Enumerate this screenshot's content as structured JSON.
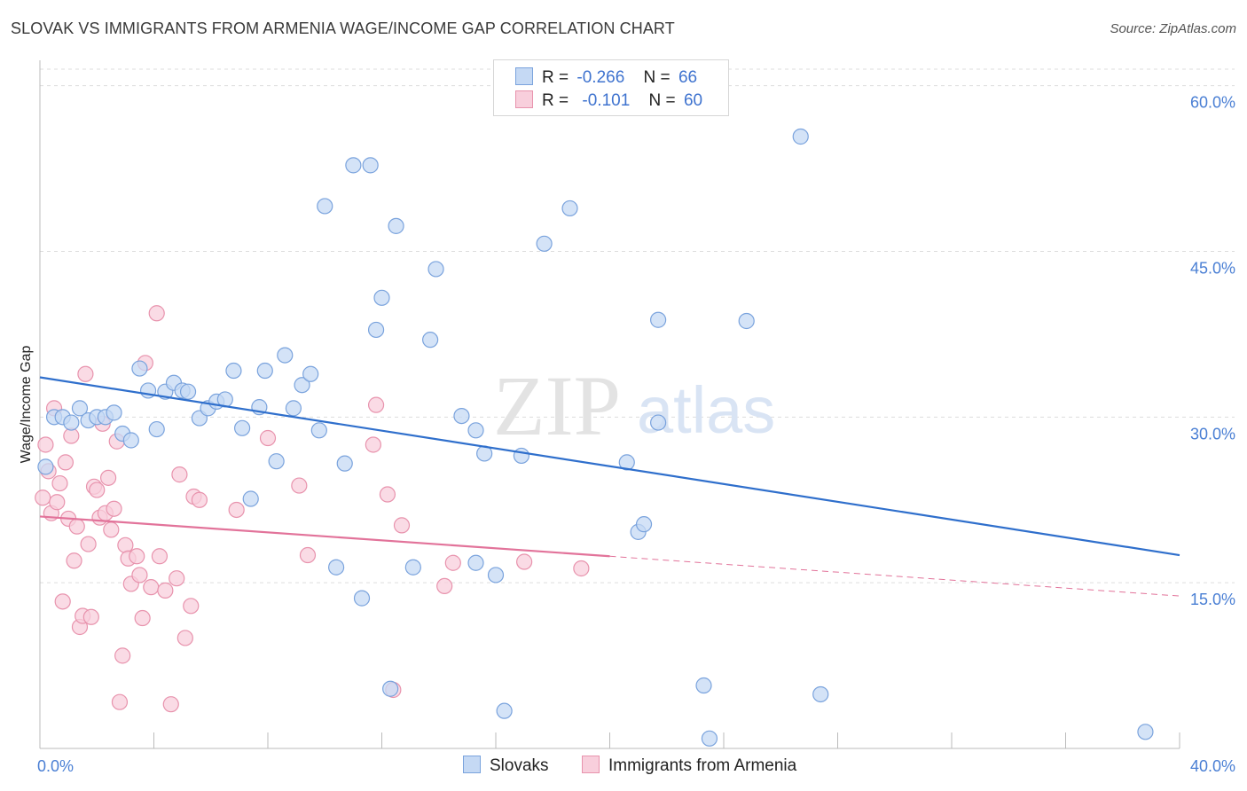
{
  "header": {
    "title": "SLOVAK VS IMMIGRANTS FROM ARMENIA WAGE/INCOME GAP CORRELATION CHART",
    "source": "Source: ZipAtlas.com"
  },
  "watermark": {
    "zip": "ZIP",
    "atlas": "atlas"
  },
  "legend": {
    "rows": [
      {
        "r_label": "R =",
        "r_value": "-0.266",
        "n_label": "N =",
        "n_value": "66"
      },
      {
        "r_label": "R =",
        "r_value": "-0.101",
        "n_label": "N =",
        "n_value": "60"
      }
    ]
  },
  "colors": {
    "slovak_fill": "#c5d9f4",
    "slovak_stroke": "#7aa3dd",
    "slovak_line": "#2f6fcc",
    "armenia_fill": "#f8cfdc",
    "armenia_stroke": "#e893ad",
    "armenia_line": "#e2739a",
    "tick_label": "#4a7fd4",
    "grid": "#dddddd"
  },
  "chart_data": {
    "type": "scatter",
    "ylabel": "Wage/Income Gap",
    "x_tick_labels": [
      "0.0%",
      "40.0%"
    ],
    "y_tick_labels": [
      "60.0%",
      "45.0%",
      "30.0%",
      "15.0%"
    ],
    "y_ticks": [
      60,
      45,
      30,
      15
    ],
    "xlim": [
      0,
      40
    ],
    "ylim": [
      0,
      61.5
    ],
    "grid": true,
    "legend_position": "bottom",
    "series": [
      {
        "name": "Slovaks",
        "r": -0.266,
        "n": 66,
        "trend": {
          "x0": 0,
          "y0": 33.6,
          "x1": 40,
          "y1": 17.5
        },
        "points": [
          [
            0.2,
            25.5
          ],
          [
            0.5,
            30.0
          ],
          [
            0.8,
            30.0
          ],
          [
            1.1,
            29.5
          ],
          [
            1.4,
            30.8
          ],
          [
            1.7,
            29.7
          ],
          [
            2.0,
            30.0
          ],
          [
            2.3,
            30.0
          ],
          [
            2.6,
            30.4
          ],
          [
            2.9,
            28.5
          ],
          [
            3.2,
            27.9
          ],
          [
            3.5,
            34.4
          ],
          [
            3.8,
            32.4
          ],
          [
            4.1,
            28.9
          ],
          [
            4.4,
            32.3
          ],
          [
            4.7,
            33.1
          ],
          [
            5.0,
            32.4
          ],
          [
            5.2,
            32.3
          ],
          [
            5.6,
            29.9
          ],
          [
            5.9,
            30.8
          ],
          [
            6.2,
            31.4
          ],
          [
            6.5,
            31.6
          ],
          [
            6.8,
            34.2
          ],
          [
            7.1,
            29.0
          ],
          [
            7.4,
            22.6
          ],
          [
            7.7,
            30.9
          ],
          [
            7.9,
            34.2
          ],
          [
            8.3,
            26.0
          ],
          [
            8.6,
            35.6
          ],
          [
            8.9,
            30.8
          ],
          [
            9.2,
            32.9
          ],
          [
            9.5,
            33.9
          ],
          [
            9.8,
            28.8
          ],
          [
            10.0,
            49.1
          ],
          [
            10.4,
            16.4
          ],
          [
            10.7,
            25.8
          ],
          [
            11.0,
            52.8
          ],
          [
            11.3,
            13.6
          ],
          [
            11.6,
            52.8
          ],
          [
            11.8,
            37.9
          ],
          [
            12.0,
            40.8
          ],
          [
            12.3,
            5.4
          ],
          [
            12.5,
            47.3
          ],
          [
            13.1,
            16.4
          ],
          [
            13.7,
            37.0
          ],
          [
            13.9,
            43.4
          ],
          [
            14.8,
            30.1
          ],
          [
            15.3,
            16.8
          ],
          [
            15.3,
            28.8
          ],
          [
            15.6,
            26.7
          ],
          [
            16.0,
            15.7
          ],
          [
            16.3,
            3.4
          ],
          [
            16.9,
            26.5
          ],
          [
            17.7,
            45.7
          ],
          [
            18.6,
            48.9
          ],
          [
            20.6,
            25.9
          ],
          [
            21.0,
            19.6
          ],
          [
            21.2,
            20.3
          ],
          [
            21.7,
            29.5
          ],
          [
            21.7,
            38.8
          ],
          [
            23.3,
            5.7
          ],
          [
            23.5,
            0.9
          ],
          [
            24.8,
            38.7
          ],
          [
            26.7,
            55.4
          ],
          [
            27.4,
            4.9
          ],
          [
            38.8,
            1.5
          ]
        ]
      },
      {
        "name": "Immigrants from Armenia",
        "r": -0.101,
        "n": 60,
        "trend": {
          "x0": 0,
          "y0": 21.0,
          "x1": 20,
          "y1": 17.4,
          "dash_x1": 40,
          "dash_y1": 13.8
        },
        "points": [
          [
            0.1,
            22.7
          ],
          [
            0.2,
            27.5
          ],
          [
            0.3,
            25.1
          ],
          [
            0.4,
            21.3
          ],
          [
            0.5,
            30.8
          ],
          [
            0.6,
            22.3
          ],
          [
            0.7,
            24.0
          ],
          [
            0.8,
            13.3
          ],
          [
            0.9,
            25.9
          ],
          [
            1.0,
            20.8
          ],
          [
            1.1,
            28.3
          ],
          [
            1.2,
            17.0
          ],
          [
            1.3,
            20.1
          ],
          [
            1.4,
            11.0
          ],
          [
            1.5,
            12.0
          ],
          [
            1.6,
            33.9
          ],
          [
            1.7,
            18.5
          ],
          [
            1.8,
            11.9
          ],
          [
            1.9,
            23.7
          ],
          [
            2.0,
            23.4
          ],
          [
            2.1,
            20.9
          ],
          [
            2.2,
            29.4
          ],
          [
            2.3,
            21.3
          ],
          [
            2.4,
            24.5
          ],
          [
            2.5,
            19.8
          ],
          [
            2.6,
            21.7
          ],
          [
            2.7,
            27.8
          ],
          [
            2.8,
            4.2
          ],
          [
            2.9,
            8.4
          ],
          [
            3.0,
            18.4
          ],
          [
            3.1,
            17.2
          ],
          [
            3.2,
            14.9
          ],
          [
            3.4,
            17.4
          ],
          [
            3.5,
            15.7
          ],
          [
            3.6,
            11.8
          ],
          [
            3.7,
            34.9
          ],
          [
            3.9,
            14.6
          ],
          [
            4.1,
            39.4
          ],
          [
            4.2,
            17.4
          ],
          [
            4.4,
            14.3
          ],
          [
            4.6,
            4.0
          ],
          [
            4.8,
            15.4
          ],
          [
            4.9,
            24.8
          ],
          [
            5.1,
            10.0
          ],
          [
            5.3,
            12.9
          ],
          [
            5.4,
            22.8
          ],
          [
            5.6,
            22.5
          ],
          [
            6.9,
            21.6
          ],
          [
            8.0,
            28.1
          ],
          [
            9.1,
            23.8
          ],
          [
            9.4,
            17.5
          ],
          [
            11.7,
            27.5
          ],
          [
            11.8,
            31.1
          ],
          [
            12.2,
            23.0
          ],
          [
            12.4,
            5.3
          ],
          [
            12.7,
            20.2
          ],
          [
            14.2,
            14.7
          ],
          [
            14.5,
            16.8
          ],
          [
            17.0,
            16.9
          ],
          [
            19.0,
            16.3
          ]
        ]
      }
    ]
  }
}
